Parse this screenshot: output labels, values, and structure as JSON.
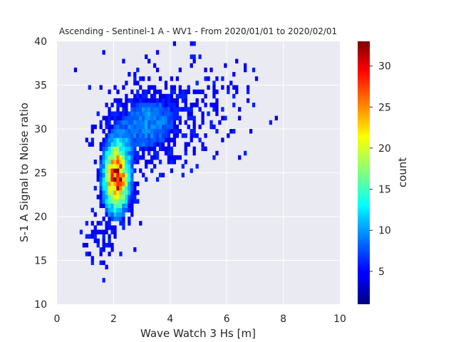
{
  "chart_data": {
    "type": "heatmap",
    "title": "Ascending - Sentinel-1 A - WV1 - From 2020/01/01 to 2020/02/01",
    "xlabel": "Wave Watch 3 Hs [m]",
    "ylabel": "S-1 A Signal to Noise ratio",
    "xlim": [
      0,
      10
    ],
    "ylim": [
      10,
      40
    ],
    "x_ticks": [
      "0",
      "2",
      "4",
      "6",
      "8",
      "10"
    ],
    "y_ticks": [
      "10",
      "15",
      "20",
      "25",
      "30",
      "35",
      "40"
    ],
    "grid": true,
    "bin_width_x": 0.1,
    "bin_width_y": 0.5,
    "colormap": "jet",
    "colorbar": {
      "label": "count",
      "range": [
        1,
        33
      ],
      "ticks": [
        "5",
        "10",
        "15",
        "20",
        "25",
        "30"
      ]
    },
    "density_model": {
      "description": "2D histogram of SNR vs Hs; dense core near Hs≈2.1 m, SNR≈24.5",
      "core_center": [
        2.1,
        24.5
      ],
      "peak_count": 33
    },
    "colors": {
      "plot_background": "#eaeaf2",
      "grid": "#ffffff",
      "text": "#262626"
    }
  }
}
